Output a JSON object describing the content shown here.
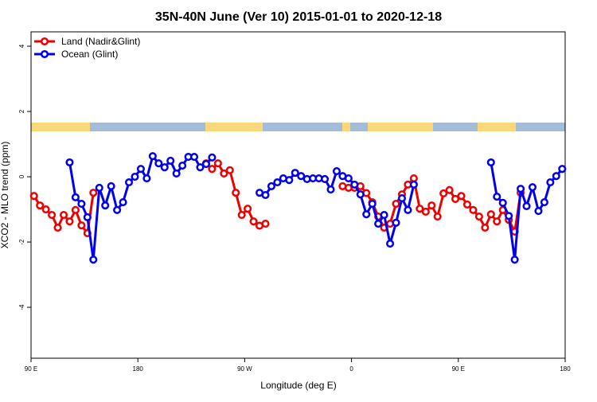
{
  "chart_data": {
    "type": "line",
    "title": "35N-40N June (Ver 10)   2015-01-01 to 2020-12-18",
    "x_label": "Longitude (deg E)",
    "y_label": "XCO2 - MLO trend (ppm)",
    "x": [
      92.5,
      97.5,
      102.5,
      107.5,
      112.5,
      117.5,
      122.5,
      127.5,
      132.5,
      137.5,
      142.5,
      147.5,
      152.5,
      157.5,
      162.5,
      167.5,
      172.5,
      177.5,
      182.5,
      187.5,
      192.5,
      197.5,
      202.5,
      207.5,
      212.5,
      217.5,
      222.5,
      227.5,
      232.5,
      237.5,
      242.5,
      247.5,
      252.5,
      257.5,
      262.5,
      267.5,
      272.5,
      277.5,
      282.5,
      287.5,
      292.5,
      297.5,
      302.5,
      307.5,
      312.5,
      317.5,
      322.5,
      327.5,
      332.5,
      337.5,
      342.5,
      347.5,
      352.5,
      357.5,
      362.5,
      367.5,
      372.5,
      377.5,
      382.5,
      387.5,
      392.5,
      397.5,
      402.5,
      407.5,
      412.5,
      417.5,
      422.5,
      427.5,
      432.5,
      437.5,
      442.5,
      447.5,
      452.5,
      457.5,
      462.5,
      467.5,
      472.5,
      477.5,
      482.5,
      487.5,
      492.5,
      497.5,
      502.5,
      507.5,
      512.5,
      517.5,
      522.5,
      527.5,
      532.5,
      537.5
    ],
    "series": [
      {
        "name": "Land (Nadir&Glint)",
        "color": "#ee0000",
        "values": [
          -0.59,
          -0.88,
          -1.0,
          -1.17,
          -1.56,
          -1.17,
          -1.37,
          -1.02,
          -1.49,
          -1.73,
          -0.49,
          null,
          null,
          null,
          null,
          null,
          null,
          null,
          null,
          null,
          null,
          null,
          null,
          null,
          null,
          null,
          null,
          null,
          null,
          0.41,
          0.24,
          0.41,
          0.1,
          0.2,
          -0.49,
          -1.17,
          -0.98,
          -1.37,
          -1.5,
          -1.44,
          null,
          null,
          null,
          null,
          null,
          null,
          null,
          null,
          null,
          null,
          null,
          null,
          -0.29,
          -0.34,
          -0.34,
          -0.29,
          -0.5,
          -0.78,
          -1.22,
          -1.56,
          -1.44,
          -0.83,
          -0.54,
          -0.24,
          -0.05,
          -0.98,
          -1.07,
          -0.88,
          -1.22,
          -0.51,
          -0.41,
          -0.68,
          -0.59,
          -0.85,
          -1.02,
          -1.22,
          -1.56,
          -1.15,
          -1.37,
          -1.02,
          -1.32,
          -1.68,
          -0.49,
          null,
          null,
          null,
          null,
          null,
          null,
          null
        ]
      },
      {
        "name": "Ocean (Glint)",
        "color": "#0000ee",
        "values": [
          null,
          null,
          null,
          null,
          null,
          null,
          0.44,
          -0.63,
          -0.83,
          -1.24,
          -2.54,
          -0.34,
          -0.88,
          -0.29,
          -1.02,
          -0.78,
          -0.17,
          0,
          0.24,
          -0.05,
          0.63,
          0.41,
          0.29,
          0.49,
          0.1,
          0.34,
          0.61,
          0.61,
          0.29,
          0.39,
          0.59,
          null,
          null,
          null,
          null,
          null,
          null,
          null,
          -0.49,
          -0.56,
          -0.29,
          -0.17,
          -0.05,
          -0.1,
          0.12,
          0.02,
          -0.07,
          -0.05,
          -0.05,
          -0.07,
          -0.39,
          0.17,
          0.02,
          -0.05,
          -0.24,
          -0.54,
          -1.15,
          -0.83,
          -1.44,
          -1.17,
          -2.05,
          -1.41,
          -0.66,
          -1.02,
          -0.24,
          null,
          null,
          null,
          null,
          null,
          null,
          null,
          null,
          null,
          null,
          null,
          null,
          0.44,
          -0.61,
          -0.8,
          -1.2,
          -2.54,
          -0.37,
          -0.9,
          -0.32,
          -1.05,
          -0.78,
          -0.17,
          0.02,
          0.24
        ]
      }
    ],
    "xlim": [
      90,
      540
    ],
    "xticks": [
      {
        "value": 90,
        "label": "90 E"
      },
      180,
      {
        "value": 270,
        "label": "90 W"
      },
      {
        "value": 360,
        "label": "0"
      },
      {
        "value": 450,
        "label": "90 E"
      },
      {
        "value": 540,
        "label": "180"
      }
    ],
    "ylim": [
      -5.56,
      4.44
    ],
    "yticks": [
      -4,
      -2,
      0,
      2,
      4
    ],
    "legend": "top-left"
  }
}
